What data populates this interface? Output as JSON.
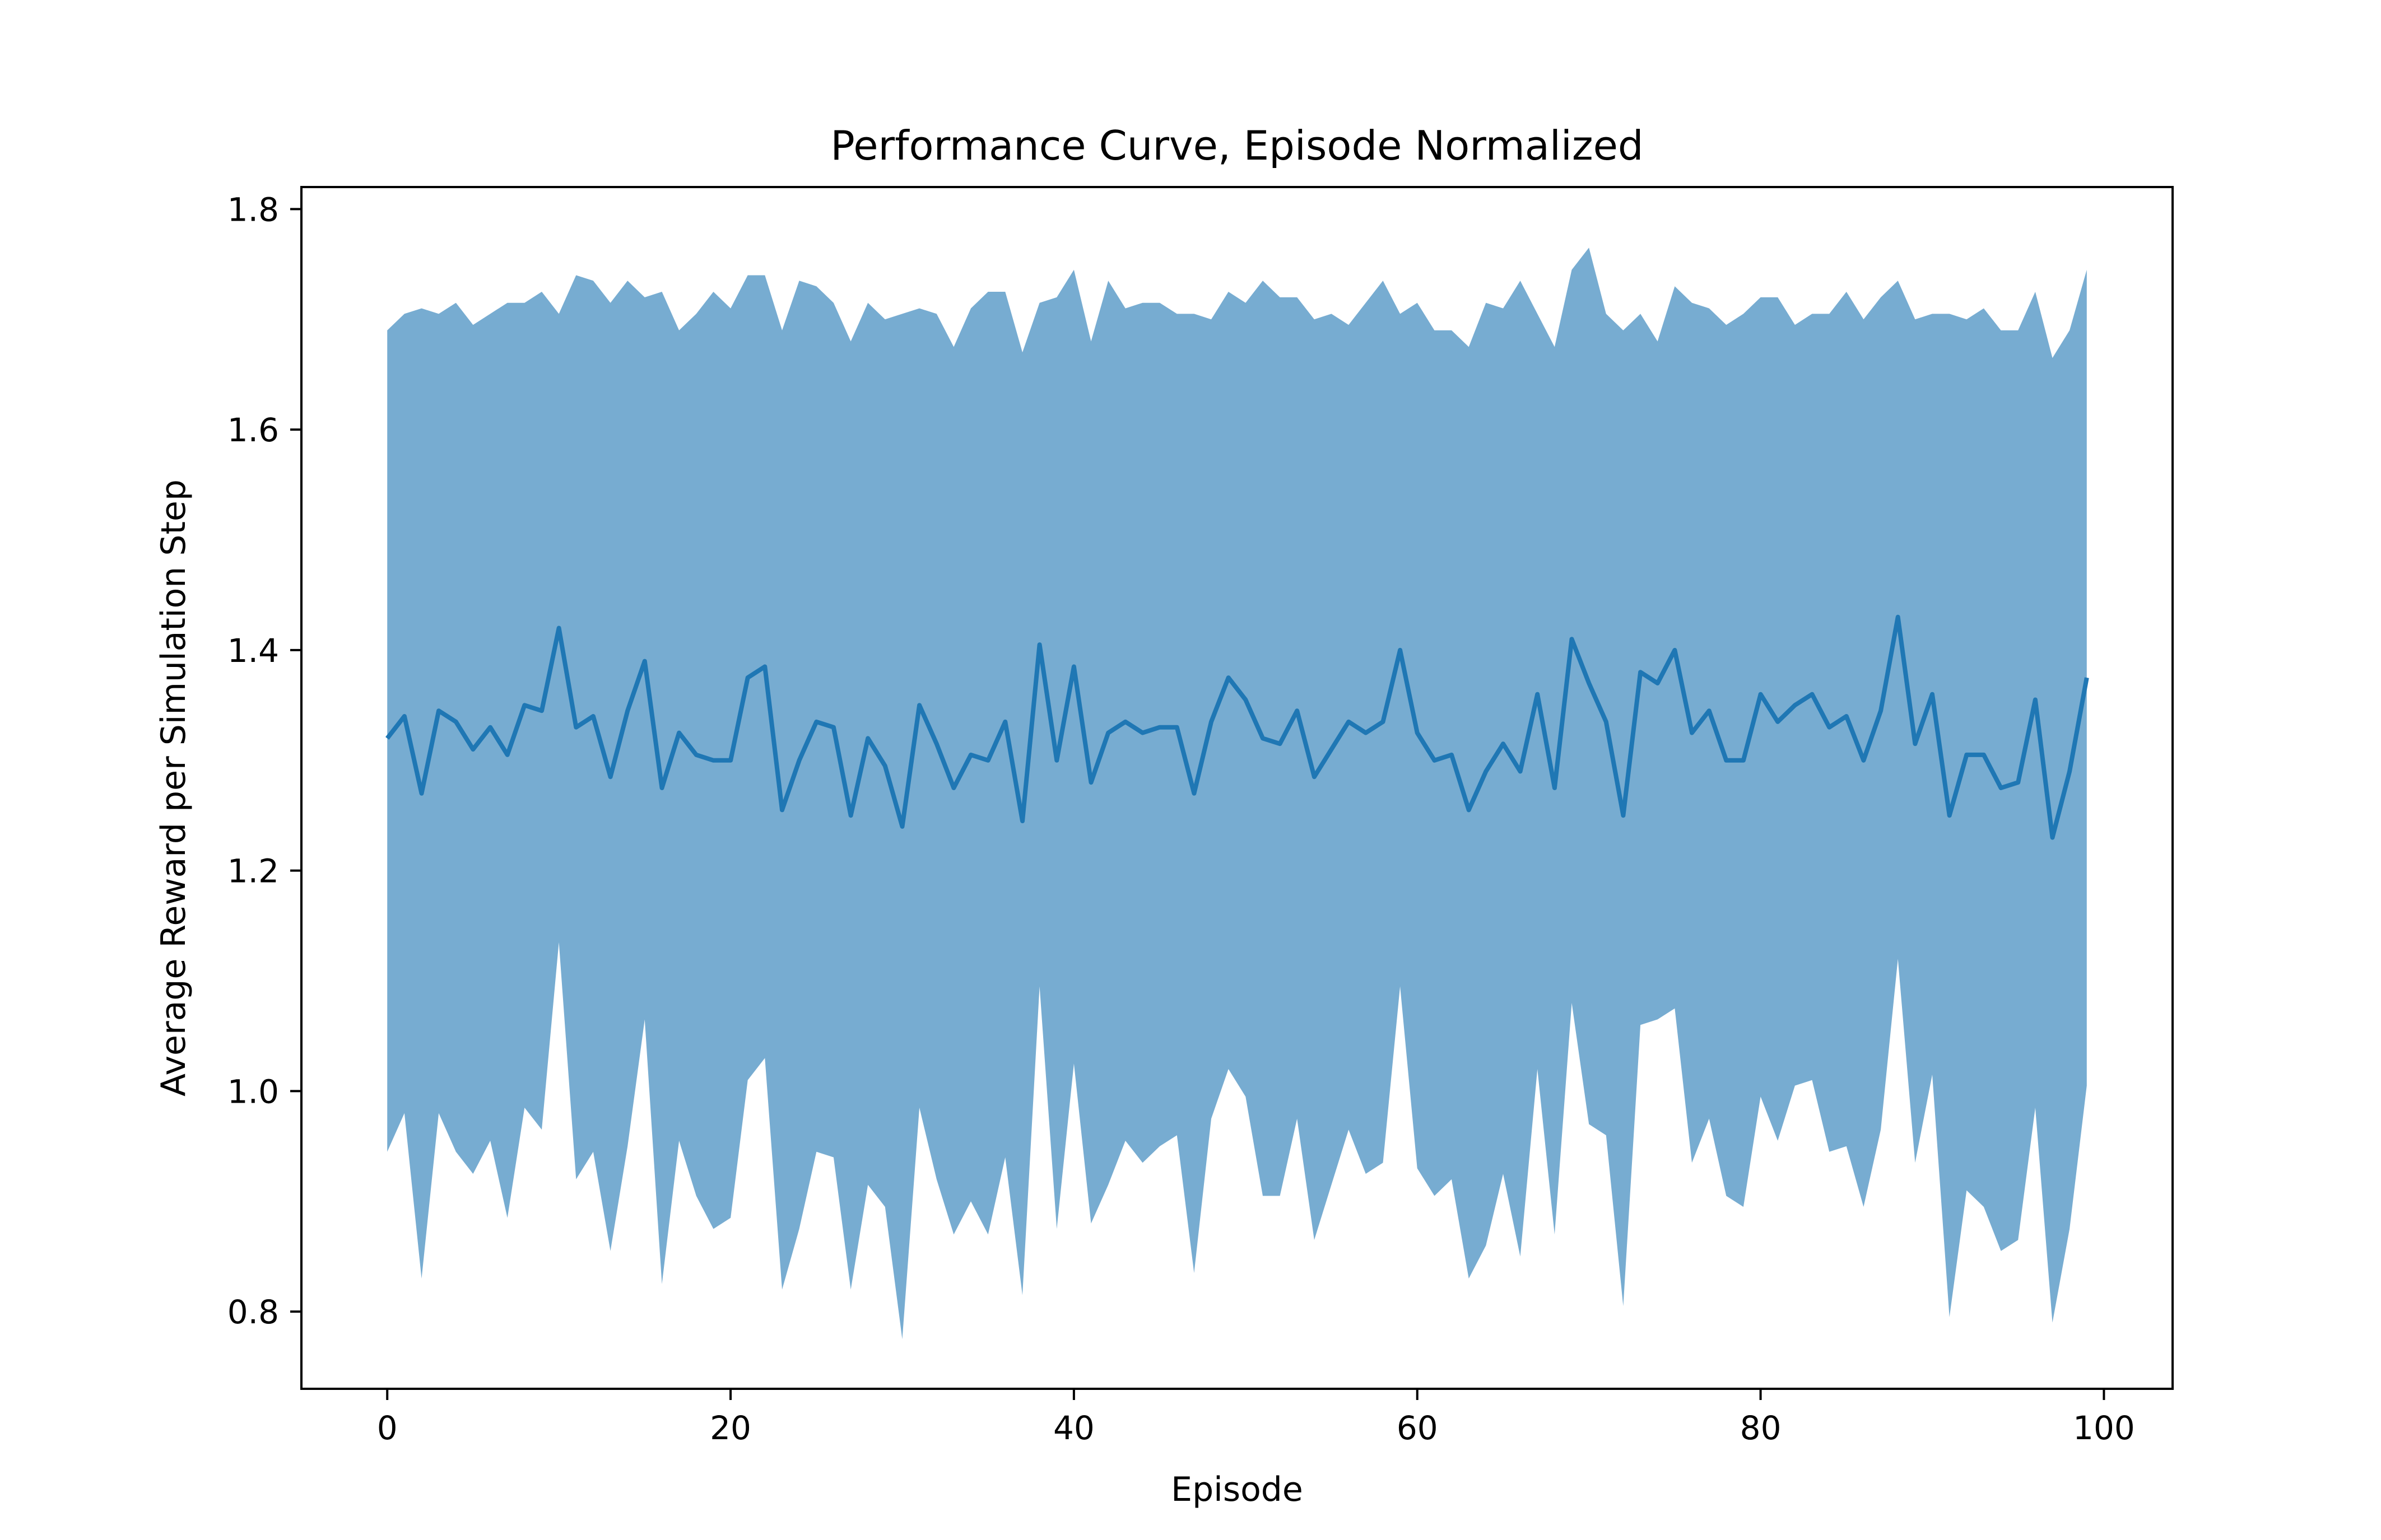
{
  "chart_data": {
    "type": "line",
    "title": "Performance Curve, Episode Normalized",
    "xlabel": "Episode",
    "ylabel": "Average Reward per Simulation Step",
    "xlim": [
      -5,
      104
    ],
    "ylim": [
      0.73,
      1.82
    ],
    "xticks": [
      0,
      20,
      40,
      60,
      80,
      100
    ],
    "xtick_labels": [
      "0",
      "20",
      "40",
      "60",
      "80",
      "100"
    ],
    "yticks": [
      0.8,
      1.0,
      1.2,
      1.4,
      1.6,
      1.8
    ],
    "ytick_labels": [
      "0.8",
      "1.0",
      "1.2",
      "1.4",
      "1.6",
      "1.8"
    ],
    "grid": false,
    "colors": {
      "line": "#1f77b4",
      "band": "#77acd1",
      "axes": "#000000"
    },
    "x": [
      0,
      1,
      2,
      3,
      4,
      5,
      6,
      7,
      8,
      9,
      10,
      11,
      12,
      13,
      14,
      15,
      16,
      17,
      18,
      19,
      20,
      21,
      22,
      23,
      24,
      25,
      26,
      27,
      28,
      29,
      30,
      31,
      32,
      33,
      34,
      35,
      36,
      37,
      38,
      39,
      40,
      41,
      42,
      43,
      44,
      45,
      46,
      47,
      48,
      49,
      50,
      51,
      52,
      53,
      54,
      55,
      56,
      57,
      58,
      59,
      60,
      61,
      62,
      63,
      64,
      65,
      66,
      67,
      68,
      69,
      70,
      71,
      72,
      73,
      74,
      75,
      76,
      77,
      78,
      79,
      80,
      81,
      82,
      83,
      84,
      85,
      86,
      87,
      88,
      89,
      90,
      91,
      92,
      93,
      94,
      95,
      96,
      97,
      98,
      99
    ],
    "series": [
      {
        "values": [
          1.32,
          1.34,
          1.27,
          1.345,
          1.335,
          1.31,
          1.33,
          1.305,
          1.35,
          1.345,
          1.42,
          1.33,
          1.34,
          1.285,
          1.345,
          1.39,
          1.275,
          1.325,
          1.305,
          1.3,
          1.3,
          1.375,
          1.385,
          1.255,
          1.3,
          1.335,
          1.33,
          1.25,
          1.32,
          1.295,
          1.24,
          1.35,
          1.315,
          1.275,
          1.305,
          1.3,
          1.335,
          1.245,
          1.405,
          1.3,
          1.385,
          1.28,
          1.325,
          1.335,
          1.325,
          1.33,
          1.33,
          1.27,
          1.335,
          1.375,
          1.355,
          1.32,
          1.315,
          1.345,
          1.285,
          1.31,
          1.335,
          1.325,
          1.335,
          1.4,
          1.325,
          1.3,
          1.305,
          1.255,
          1.29,
          1.315,
          1.29,
          1.36,
          1.275,
          1.41,
          1.37,
          1.335,
          1.25,
          1.38,
          1.37,
          1.4,
          1.325,
          1.345,
          1.3,
          1.3,
          1.36,
          1.335,
          1.35,
          1.36,
          1.33,
          1.34,
          1.3,
          1.345,
          1.43,
          1.315,
          1.36,
          1.25,
          1.305,
          1.305,
          1.275,
          1.28,
          1.355,
          1.23,
          1.29,
          1.375
        ]
      }
    ],
    "band": {
      "upper": [
        1.69,
        1.705,
        1.71,
        1.705,
        1.715,
        1.695,
        1.705,
        1.715,
        1.715,
        1.725,
        1.705,
        1.74,
        1.735,
        1.715,
        1.735,
        1.72,
        1.725,
        1.69,
        1.705,
        1.725,
        1.71,
        1.74,
        1.74,
        1.69,
        1.735,
        1.73,
        1.715,
        1.68,
        1.715,
        1.7,
        1.705,
        1.71,
        1.705,
        1.675,
        1.71,
        1.725,
        1.725,
        1.67,
        1.715,
        1.72,
        1.745,
        1.68,
        1.735,
        1.71,
        1.715,
        1.715,
        1.705,
        1.705,
        1.7,
        1.725,
        1.715,
        1.735,
        1.72,
        1.72,
        1.7,
        1.705,
        1.695,
        1.715,
        1.735,
        1.705,
        1.715,
        1.69,
        1.69,
        1.675,
        1.715,
        1.71,
        1.735,
        1.705,
        1.675,
        1.745,
        1.765,
        1.705,
        1.69,
        1.705,
        1.68,
        1.73,
        1.715,
        1.71,
        1.695,
        1.705,
        1.72,
        1.72,
        1.695,
        1.705,
        1.705,
        1.725,
        1.7,
        1.72,
        1.735,
        1.7,
        1.705,
        1.705,
        1.7,
        1.71,
        1.69,
        1.69,
        1.725,
        1.665,
        1.69,
        1.745
      ],
      "lower": [
        0.945,
        0.98,
        0.83,
        0.98,
        0.945,
        0.925,
        0.955,
        0.885,
        0.985,
        0.965,
        1.135,
        0.92,
        0.945,
        0.855,
        0.95,
        1.065,
        0.825,
        0.955,
        0.905,
        0.875,
        0.885,
        1.01,
        1.03,
        0.82,
        0.875,
        0.945,
        0.94,
        0.82,
        0.915,
        0.895,
        0.775,
        0.985,
        0.92,
        0.87,
        0.9,
        0.87,
        0.94,
        0.815,
        1.095,
        0.875,
        1.025,
        0.88,
        0.915,
        0.955,
        0.935,
        0.95,
        0.96,
        0.835,
        0.975,
        1.02,
        0.995,
        0.905,
        0.905,
        0.975,
        0.865,
        0.915,
        0.965,
        0.925,
        0.935,
        1.095,
        0.93,
        0.905,
        0.92,
        0.83,
        0.86,
        0.925,
        0.85,
        1.02,
        0.87,
        1.08,
        0.97,
        0.96,
        0.805,
        1.06,
        1.065,
        1.075,
        0.935,
        0.975,
        0.905,
        0.895,
        0.995,
        0.955,
        1.005,
        1.01,
        0.945,
        0.95,
        0.895,
        0.965,
        1.12,
        0.935,
        1.015,
        0.795,
        0.91,
        0.895,
        0.855,
        0.865,
        0.985,
        0.79,
        0.875,
        1.005
      ]
    }
  }
}
